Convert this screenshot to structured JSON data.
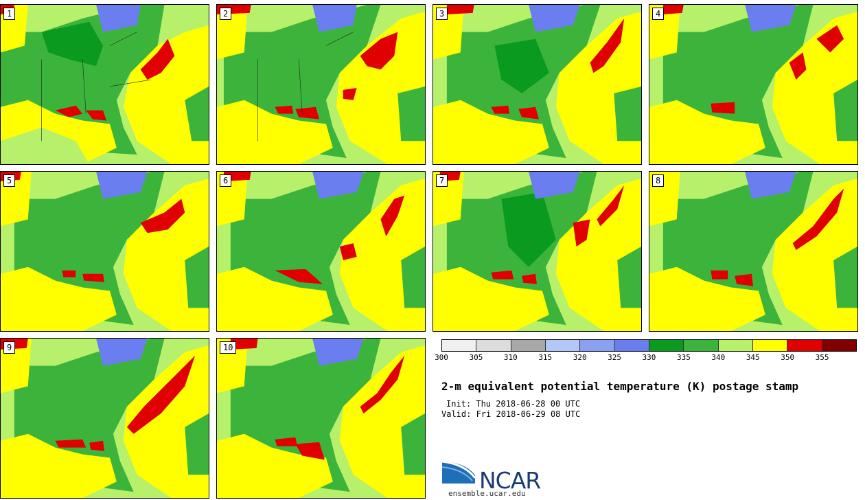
{
  "panels": [
    {
      "label": "1"
    },
    {
      "label": "2"
    },
    {
      "label": "3"
    },
    {
      "label": "4"
    },
    {
      "label": "5"
    },
    {
      "label": "6"
    },
    {
      "label": "7"
    },
    {
      "label": "8"
    },
    {
      "label": "9"
    },
    {
      "label": "10"
    }
  ],
  "legend": {
    "colors": [
      "#f0f0f0",
      "#dcdcdc",
      "#a8a8a8",
      "#b4c8f8",
      "#8aa0f0",
      "#6a7ef0",
      "#0a9a20",
      "#3cb43c",
      "#b7f06a",
      "#ffff00",
      "#e00000",
      "#800000"
    ],
    "ticks": [
      "300",
      "305",
      "310",
      "315",
      "320",
      "325",
      "330",
      "335",
      "340",
      "345",
      "350",
      "355"
    ]
  },
  "title": "2-m equivalent potential temperature (K) postage stamp",
  "init": "Init: Thu 2018-06-28 00 UTC",
  "valid": "Valid: Fri 2018-06-29 08 UTC",
  "logo": {
    "text": "NCAR",
    "url": "ensemble.ucar.edu"
  }
}
